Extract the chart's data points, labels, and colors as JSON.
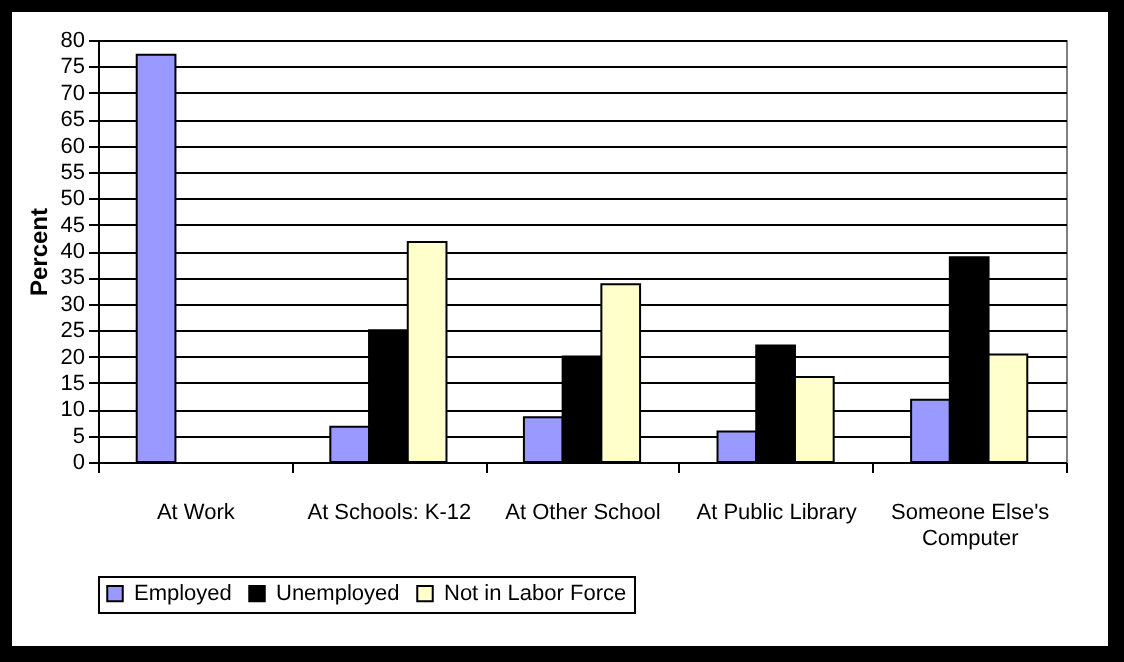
{
  "chart_data": {
    "type": "bar",
    "ylabel": "Percent",
    "categories": [
      "At Work",
      "At Schools: K-12",
      "At Other School",
      "At Public Library",
      "Someone Else's Computer"
    ],
    "series": [
      {
        "name": "Employed",
        "color": "#9999ff",
        "values": [
          77.2,
          6.7,
          8.5,
          5.8,
          11.8
        ]
      },
      {
        "name": "Unemployed",
        "color": "#000000",
        "values": [
          null,
          25,
          20,
          22.1,
          38.8
        ]
      },
      {
        "name": "Not in Labor Force",
        "color": "#ffffcc",
        "values": [
          null,
          41.7,
          33.7,
          16.1,
          20.4
        ]
      }
    ],
    "ylim": [
      0,
      80
    ],
    "yticks": [
      0,
      5,
      10,
      15,
      20,
      25,
      30,
      35,
      40,
      45,
      50,
      55,
      60,
      65,
      70,
      75,
      80
    ],
    "grid": "y",
    "legend": "bottom"
  }
}
